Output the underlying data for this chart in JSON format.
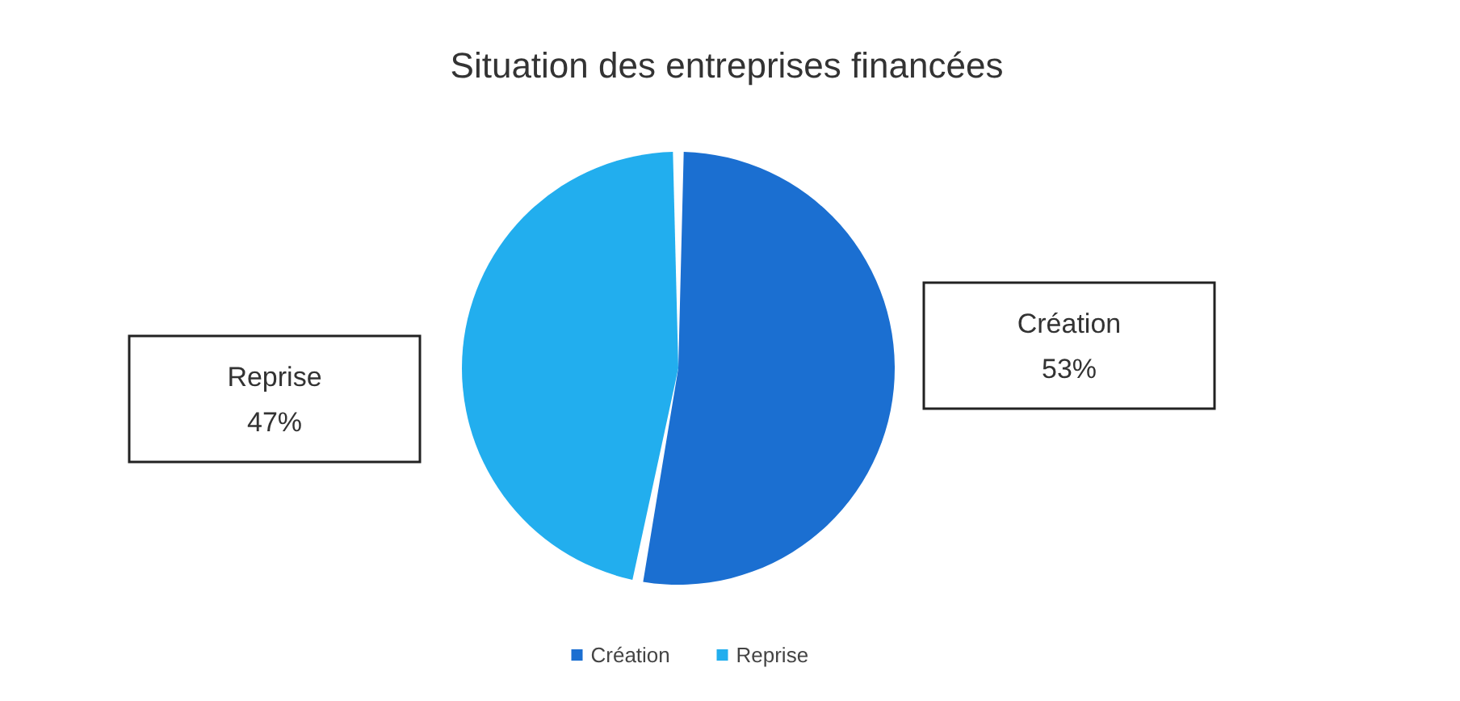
{
  "chart_data": {
    "type": "pie",
    "title": "Situation des entreprises financées",
    "categories": [
      "Création",
      "Reprise"
    ],
    "values": [
      53,
      47
    ],
    "value_labels": [
      "53%",
      "47%"
    ],
    "colors": [
      "#1b6fd1",
      "#22aeee"
    ],
    "legend": "bottom"
  }
}
